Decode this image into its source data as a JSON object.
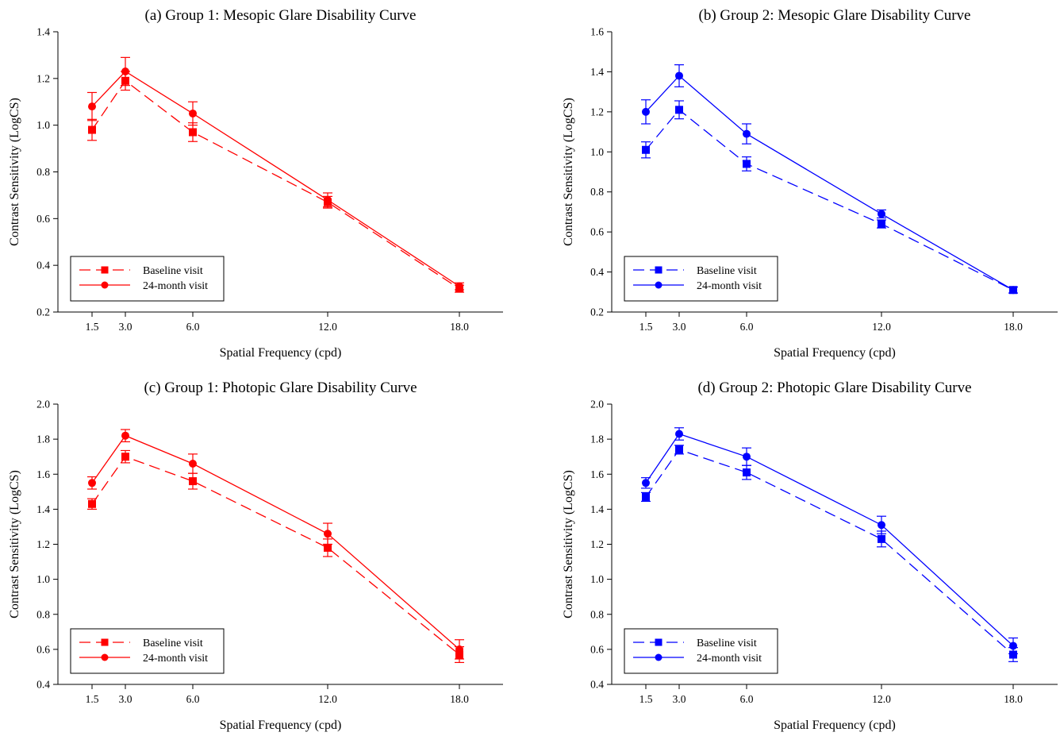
{
  "chart_data": [
    {
      "type": "line",
      "title": "(a) Group 1: Mesopic Glare Disability Curve",
      "xlabel": "Spatial Frequency (cpd)",
      "ylabel": "Contrast Sensitivity (LogCS)",
      "x_ticks": [
        "1.5",
        "3.0",
        "6.0",
        "12.0",
        "18.0"
      ],
      "y_ticks": [
        "0.2",
        "0.4",
        "0.6",
        "0.8",
        "1.0",
        "1.2",
        "1.4"
      ],
      "ylim": [
        0.2,
        1.4
      ],
      "color": "#ff0000",
      "legend_position": "bottom-left",
      "grid": false,
      "series": [
        {
          "name": "Baseline visit",
          "marker": "square",
          "line": "dashed",
          "values": [
            0.98,
            1.19,
            0.97,
            0.67,
            0.3
          ],
          "errors": [
            0.045,
            0.04,
            0.04,
            0.025,
            0.015
          ]
        },
        {
          "name": "24-month visit",
          "marker": "circle",
          "line": "solid",
          "values": [
            1.08,
            1.23,
            1.05,
            0.68,
            0.31
          ],
          "errors": [
            0.06,
            0.06,
            0.05,
            0.03,
            0.015
          ]
        }
      ]
    },
    {
      "type": "line",
      "title": "(b) Group 2: Mesopic Glare Disability Curve",
      "xlabel": "Spatial Frequency (cpd)",
      "ylabel": "Contrast Sensitivity (LogCS)",
      "x_ticks": [
        "1.5",
        "3.0",
        "6.0",
        "12.0",
        "18.0"
      ],
      "y_ticks": [
        "0.2",
        "0.4",
        "0.6",
        "0.8",
        "1.0",
        "1.2",
        "1.4",
        "1.6"
      ],
      "ylim": [
        0.2,
        1.6
      ],
      "color": "#0000ff",
      "legend_position": "bottom-left",
      "grid": false,
      "series": [
        {
          "name": "Baseline visit",
          "marker": "square",
          "line": "dashed",
          "values": [
            1.01,
            1.21,
            0.94,
            0.64,
            0.31
          ],
          "errors": [
            0.04,
            0.045,
            0.035,
            0.02,
            0.015
          ]
        },
        {
          "name": "24-month visit",
          "marker": "circle",
          "line": "solid",
          "values": [
            1.2,
            1.38,
            1.09,
            0.69,
            0.31
          ],
          "errors": [
            0.06,
            0.055,
            0.05,
            0.02,
            0.015
          ]
        }
      ]
    },
    {
      "type": "line",
      "title": "(c) Group 1: Photopic Glare Disability Curve",
      "xlabel": "Spatial Frequency (cpd)",
      "ylabel": "Contrast Sensitivity (LogCS)",
      "x_ticks": [
        "1.5",
        "3.0",
        "6.0",
        "12.0",
        "18.0"
      ],
      "y_ticks": [
        "0.4",
        "0.6",
        "0.8",
        "1.0",
        "1.2",
        "1.4",
        "1.6",
        "1.8",
        "2.0"
      ],
      "ylim": [
        0.4,
        2.0
      ],
      "color": "#ff0000",
      "legend_position": "bottom-left",
      "grid": false,
      "series": [
        {
          "name": "Baseline visit",
          "marker": "square",
          "line": "dashed",
          "values": [
            1.43,
            1.7,
            1.56,
            1.18,
            0.57
          ],
          "errors": [
            0.03,
            0.035,
            0.045,
            0.05,
            0.045
          ]
        },
        {
          "name": "24-month visit",
          "marker": "circle",
          "line": "solid",
          "values": [
            1.55,
            1.82,
            1.66,
            1.26,
            0.6
          ],
          "errors": [
            0.035,
            0.035,
            0.055,
            0.06,
            0.055
          ]
        }
      ]
    },
    {
      "type": "line",
      "title": "(d) Group 2: Photopic Glare Disability Curve",
      "xlabel": "Spatial Frequency (cpd)",
      "ylabel": "Contrast Sensitivity (LogCS)",
      "x_ticks": [
        "1.5",
        "3.0",
        "6.0",
        "12.0",
        "18.0"
      ],
      "y_ticks": [
        "0.4",
        "0.6",
        "0.8",
        "1.0",
        "1.2",
        "1.4",
        "1.6",
        "1.8",
        "2.0"
      ],
      "ylim": [
        0.4,
        2.0
      ],
      "color": "#0000ff",
      "legend_position": "bottom-left",
      "grid": false,
      "series": [
        {
          "name": "Baseline visit",
          "marker": "square",
          "line": "dashed",
          "values": [
            1.47,
            1.74,
            1.61,
            1.23,
            0.57
          ],
          "errors": [
            0.025,
            0.025,
            0.04,
            0.045,
            0.04
          ]
        },
        {
          "name": "24-month visit",
          "marker": "circle",
          "line": "solid",
          "values": [
            1.55,
            1.83,
            1.7,
            1.31,
            0.62
          ],
          "errors": [
            0.03,
            0.035,
            0.05,
            0.05,
            0.045
          ]
        }
      ]
    }
  ]
}
